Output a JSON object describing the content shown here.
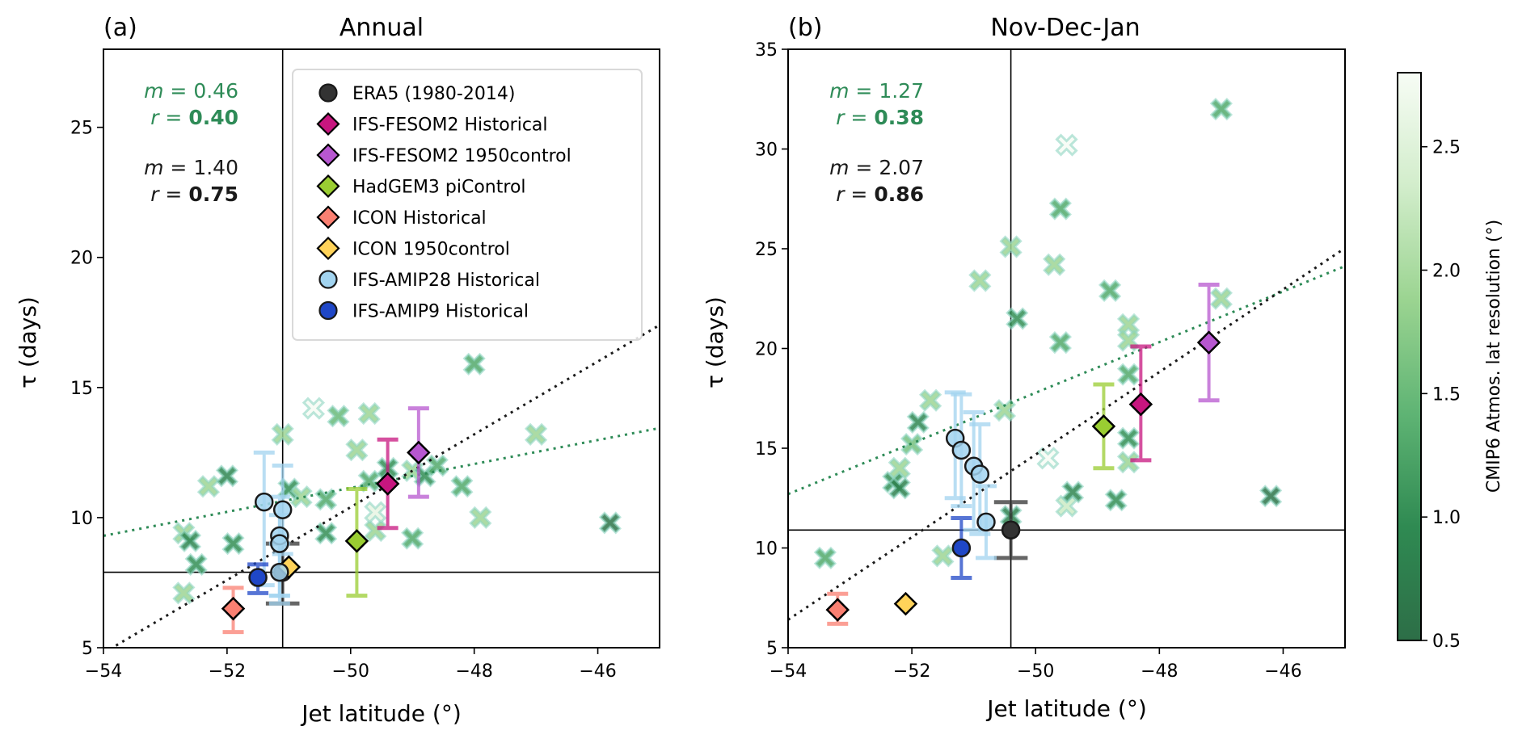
{
  "figure": {
    "colorbar": {
      "label": "CMIP6 Atmos. lat resolution (°)",
      "range": [
        0.5,
        2.8
      ],
      "ticks": [
        "0.5",
        "1.0",
        "1.5",
        "2.0",
        "2.5"
      ],
      "tick_values": [
        0.5,
        1.0,
        1.5,
        2.0,
        2.5
      ],
      "colormap_low": "#2d6e47",
      "colormap_high": "#f7fcf5"
    },
    "legend": {
      "placement": "upper-right of panel (a)",
      "entries": [
        {
          "label": "ERA5 (1980-2014)",
          "marker": "circle",
          "color": "#333333"
        },
        {
          "label": "IFS-FESOM2 Historical",
          "marker": "diamond",
          "color": "#c7167f"
        },
        {
          "label": "IFS-FESOM2 1950control",
          "marker": "diamond",
          "color": "#b757d0"
        },
        {
          "label": "HadGEM3 piControl",
          "marker": "diamond",
          "color": "#9acd32"
        },
        {
          "label": "ICON Historical",
          "marker": "diamond",
          "color": "#fa8072"
        },
        {
          "label": "ICON 1950control",
          "marker": "diamond",
          "color": "#ffd35a"
        },
        {
          "label": "IFS-AMIP28 Historical",
          "marker": "circle",
          "color": "#a2d4f0"
        },
        {
          "label": "IFS-AMIP9 Historical",
          "marker": "circle",
          "color": "#1f47c7"
        }
      ]
    }
  },
  "chart_data": [
    {
      "type": "scatter",
      "panel_label": "(a)",
      "title": "Annual",
      "xlabel": "Jet latitude (°)",
      "ylabel": "τ (days)",
      "xlim": [
        -54,
        -45
      ],
      "ylim": [
        5,
        28
      ],
      "xticks": [
        -54,
        -52,
        -50,
        -48,
        -46
      ],
      "xtick_labels": [
        "−54",
        "−52",
        "−50",
        "−48",
        "−46"
      ],
      "yticks": [
        5,
        10,
        15,
        20,
        25
      ],
      "ytick_labels": [
        "5",
        "10",
        "15",
        "20",
        "25"
      ],
      "era5_ref": {
        "x": -51.1,
        "y": 7.9
      },
      "stats_cmip": {
        "m_label": "m = 0.46",
        "r_prefix": "r = ",
        "r_value": "0.40",
        "color": "#2e8b57"
      },
      "stats_all": {
        "m_label": "m = 1.40",
        "r_prefix": "r = ",
        "r_value": "0.75",
        "color": "#1a1a1a"
      },
      "fit_cmip": {
        "slope": 0.46,
        "intercept_at_-54": 9.3,
        "color": "#2e8b57"
      },
      "fit_all": {
        "slope": 1.4,
        "intercept_at_-54": 4.8,
        "color": "#1a1a1a"
      },
      "cmip6": [
        {
          "x": -52.7,
          "y": 9.4,
          "res": 1.9
        },
        {
          "x": -52.6,
          "y": 9.1,
          "res": 0.9
        },
        {
          "x": -52.5,
          "y": 8.2,
          "res": 1.0
        },
        {
          "x": -52.7,
          "y": 7.1,
          "res": 1.9
        },
        {
          "x": -52.3,
          "y": 11.2,
          "res": 1.9
        },
        {
          "x": -52.0,
          "y": 11.6,
          "res": 0.9
        },
        {
          "x": -51.9,
          "y": 9.0,
          "res": 1.0
        },
        {
          "x": -51.1,
          "y": 13.2,
          "res": 1.9
        },
        {
          "x": -51.0,
          "y": 11.1,
          "res": 1.0
        },
        {
          "x": -50.8,
          "y": 10.8,
          "res": 1.9
        },
        {
          "x": -50.6,
          "y": 14.2,
          "res": 2.8
        },
        {
          "x": -50.4,
          "y": 9.4,
          "res": 1.0
        },
        {
          "x": -50.4,
          "y": 10.7,
          "res": 1.3
        },
        {
          "x": -50.2,
          "y": 13.9,
          "res": 1.5
        },
        {
          "x": -49.9,
          "y": 12.6,
          "res": 1.9
        },
        {
          "x": -49.7,
          "y": 14.0,
          "res": 1.9
        },
        {
          "x": -49.7,
          "y": 11.4,
          "res": 1.3
        },
        {
          "x": -49.6,
          "y": 9.5,
          "res": 1.9
        },
        {
          "x": -49.6,
          "y": 10.2,
          "res": 2.6
        },
        {
          "x": -49.4,
          "y": 11.9,
          "res": 1.0
        },
        {
          "x": -49.0,
          "y": 9.2,
          "res": 1.3
        },
        {
          "x": -49.0,
          "y": 11.8,
          "res": 1.9
        },
        {
          "x": -48.8,
          "y": 11.6,
          "res": 1.0
        },
        {
          "x": -48.6,
          "y": 12.0,
          "res": 1.3
        },
        {
          "x": -48.2,
          "y": 11.2,
          "res": 1.3
        },
        {
          "x": -48.0,
          "y": 15.9,
          "res": 1.3
        },
        {
          "x": -47.9,
          "y": 10.0,
          "res": 1.9
        },
        {
          "x": -47.0,
          "y": 13.2,
          "res": 1.9
        },
        {
          "x": -45.8,
          "y": 9.8,
          "res": 0.6
        }
      ],
      "models": [
        {
          "name": "ERA5 (1980-2014)",
          "marker": "circle",
          "color": "#333333",
          "x": -51.1,
          "y": 7.9,
          "yerr": [
            6.7,
            9.0
          ],
          "xerr": [
            -51.1,
            -51.1
          ],
          "errbar_width": 1.0
        },
        {
          "name": "IFS-FESOM2 Historical",
          "marker": "diamond",
          "color": "#c7167f",
          "x": -49.4,
          "y": 11.3,
          "yerr": [
            9.6,
            13.0
          ]
        },
        {
          "name": "IFS-FESOM2 1950control",
          "marker": "diamond",
          "color": "#b757d0",
          "x": -48.9,
          "y": 12.5,
          "yerr": [
            10.8,
            14.2
          ]
        },
        {
          "name": "HadGEM3 piControl",
          "marker": "diamond",
          "color": "#9acd32",
          "x": -49.9,
          "y": 9.1,
          "yerr": [
            7.0,
            11.1
          ]
        },
        {
          "name": "ICON Historical",
          "marker": "diamond",
          "color": "#fa8072",
          "x": -51.9,
          "y": 6.5,
          "yerr": [
            5.6,
            7.3
          ]
        },
        {
          "name": "ICON 1950control",
          "marker": "diamond",
          "color": "#ffd35a",
          "x": -51.0,
          "y": 8.1,
          "yerr": null
        },
        {
          "name": "IFS-AMIP28 Historical",
          "marker": "circle",
          "color": "#a2d4f0",
          "points": [
            {
              "x": -51.4,
              "y": 10.6,
              "yerr": [
                7.4,
                12.5
              ]
            },
            {
              "x": -51.1,
              "y": 10.3,
              "yerr": [
                8.6,
                12.0
              ]
            },
            {
              "x": -51.15,
              "y": 9.3,
              "yerr": [
                7.0,
                10.8
              ]
            },
            {
              "x": -51.15,
              "y": 9.0,
              "yerr": [
                7.0,
                10.1
              ]
            },
            {
              "x": -51.15,
              "y": 7.9,
              "yerr": [
                6.7,
                9.0
              ]
            }
          ]
        },
        {
          "name": "IFS-AMIP9 Historical",
          "marker": "circle",
          "color": "#1f47c7",
          "x": -51.5,
          "y": 7.7,
          "yerr": [
            7.1,
            8.2
          ]
        }
      ]
    },
    {
      "type": "scatter",
      "panel_label": "(b)",
      "title": "Nov-Dec-Jan",
      "xlabel": "Jet latitude (°)",
      "ylabel": "τ (days)",
      "xlim": [
        -54,
        -45
      ],
      "ylim": [
        5,
        35
      ],
      "xticks": [
        -54,
        -52,
        -50,
        -48,
        -46
      ],
      "xtick_labels": [
        "−54",
        "−52",
        "−50",
        "−48",
        "−46"
      ],
      "yticks": [
        5,
        10,
        15,
        20,
        25,
        30,
        35
      ],
      "ytick_labels": [
        "5",
        "10",
        "15",
        "20",
        "25",
        "30",
        "35"
      ],
      "era5_ref": {
        "x": -50.4,
        "y": 10.9
      },
      "stats_cmip": {
        "m_label": "m = 1.27",
        "r_prefix": "r = ",
        "r_value": "0.38",
        "color": "#2e8b57"
      },
      "stats_all": {
        "m_label": "m = 2.07",
        "r_prefix": "r = ",
        "r_value": "0.86",
        "color": "#1a1a1a"
      },
      "fit_cmip": {
        "slope": 1.27,
        "intercept_at_-54": 12.7,
        "color": "#2e8b57"
      },
      "fit_all": {
        "slope": 2.07,
        "intercept_at_-54": 6.4,
        "color": "#1a1a1a"
      },
      "cmip6": [
        {
          "x": -53.4,
          "y": 9.5,
          "res": 1.3
        },
        {
          "x": -52.3,
          "y": 13.3,
          "res": 1.0
        },
        {
          "x": -52.2,
          "y": 13.0,
          "res": 0.8
        },
        {
          "x": -52.2,
          "y": 14.0,
          "res": 1.9
        },
        {
          "x": -52.0,
          "y": 15.2,
          "res": 1.6
        },
        {
          "x": -51.9,
          "y": 16.3,
          "res": 0.9
        },
        {
          "x": -51.7,
          "y": 17.4,
          "res": 1.9
        },
        {
          "x": -51.5,
          "y": 9.6,
          "res": 1.9
        },
        {
          "x": -50.9,
          "y": 23.4,
          "res": 1.9
        },
        {
          "x": -50.5,
          "y": 16.9,
          "res": 1.9
        },
        {
          "x": -50.4,
          "y": 25.1,
          "res": 1.9
        },
        {
          "x": -50.3,
          "y": 21.5,
          "res": 1.0
        },
        {
          "x": -50.4,
          "y": 11.6,
          "res": 0.8
        },
        {
          "x": -49.8,
          "y": 14.5,
          "res": 2.8
        },
        {
          "x": -49.7,
          "y": 24.2,
          "res": 1.9
        },
        {
          "x": -49.6,
          "y": 27.0,
          "res": 1.3
        },
        {
          "x": -49.6,
          "y": 20.3,
          "res": 1.3
        },
        {
          "x": -49.5,
          "y": 30.2,
          "res": 2.8
        },
        {
          "x": -49.5,
          "y": 12.1,
          "res": 2.3
        },
        {
          "x": -49.4,
          "y": 12.8,
          "res": 0.9
        },
        {
          "x": -48.8,
          "y": 22.9,
          "res": 1.3
        },
        {
          "x": -48.7,
          "y": 12.4,
          "res": 1.0
        },
        {
          "x": -48.5,
          "y": 21.2,
          "res": 1.9
        },
        {
          "x": -48.5,
          "y": 20.4,
          "res": 1.9
        },
        {
          "x": -48.5,
          "y": 18.7,
          "res": 1.3
        },
        {
          "x": -48.5,
          "y": 15.5,
          "res": 1.0
        },
        {
          "x": -48.5,
          "y": 14.3,
          "res": 1.9
        },
        {
          "x": -47.0,
          "y": 32.0,
          "res": 1.3
        },
        {
          "x": -47.0,
          "y": 22.5,
          "res": 1.9
        },
        {
          "x": -46.2,
          "y": 12.6,
          "res": 0.6
        }
      ],
      "models": [
        {
          "name": "ERA5 (1980-2014)",
          "marker": "circle",
          "color": "#333333",
          "x": -50.4,
          "y": 10.9,
          "yerr": [
            9.5,
            12.3
          ],
          "errbar_width": 1.0
        },
        {
          "name": "IFS-FESOM2 Historical",
          "marker": "diamond",
          "color": "#c7167f",
          "x": -48.3,
          "y": 17.2,
          "yerr": [
            14.4,
            20.1
          ]
        },
        {
          "name": "IFS-FESOM2 1950control",
          "marker": "diamond",
          "color": "#b757d0",
          "x": -47.2,
          "y": 20.3,
          "yerr": [
            17.4,
            23.2
          ]
        },
        {
          "name": "HadGEM3 piControl",
          "marker": "diamond",
          "color": "#9acd32",
          "x": -48.9,
          "y": 16.1,
          "yerr": [
            14.0,
            18.2
          ]
        },
        {
          "name": "ICON Historical",
          "marker": "diamond",
          "color": "#fa8072",
          "x": -53.2,
          "y": 6.9,
          "yerr": [
            6.2,
            7.7
          ]
        },
        {
          "name": "ICON 1950control",
          "marker": "diamond",
          "color": "#ffd35a",
          "x": -52.1,
          "y": 7.2,
          "yerr": null
        },
        {
          "name": "IFS-AMIP28 Historical",
          "marker": "circle",
          "color": "#a2d4f0",
          "points": [
            {
              "x": -51.3,
              "y": 15.5,
              "yerr": [
                12.5,
                17.8
              ]
            },
            {
              "x": -51.2,
              "y": 14.9,
              "yerr": [
                12.1,
                17.7
              ]
            },
            {
              "x": -51.0,
              "y": 14.1,
              "yerr": [
                10.9,
                16.8
              ]
            },
            {
              "x": -50.9,
              "y": 13.7,
              "yerr": [
                10.7,
                16.2
              ]
            },
            {
              "x": -50.8,
              "y": 11.3,
              "yerr": [
                9.5,
                13.1
              ]
            }
          ]
        },
        {
          "name": "IFS-AMIP9 Historical",
          "marker": "circle",
          "color": "#1f47c7",
          "x": -51.2,
          "y": 10.0,
          "yerr": [
            8.5,
            11.5
          ]
        }
      ]
    }
  ]
}
